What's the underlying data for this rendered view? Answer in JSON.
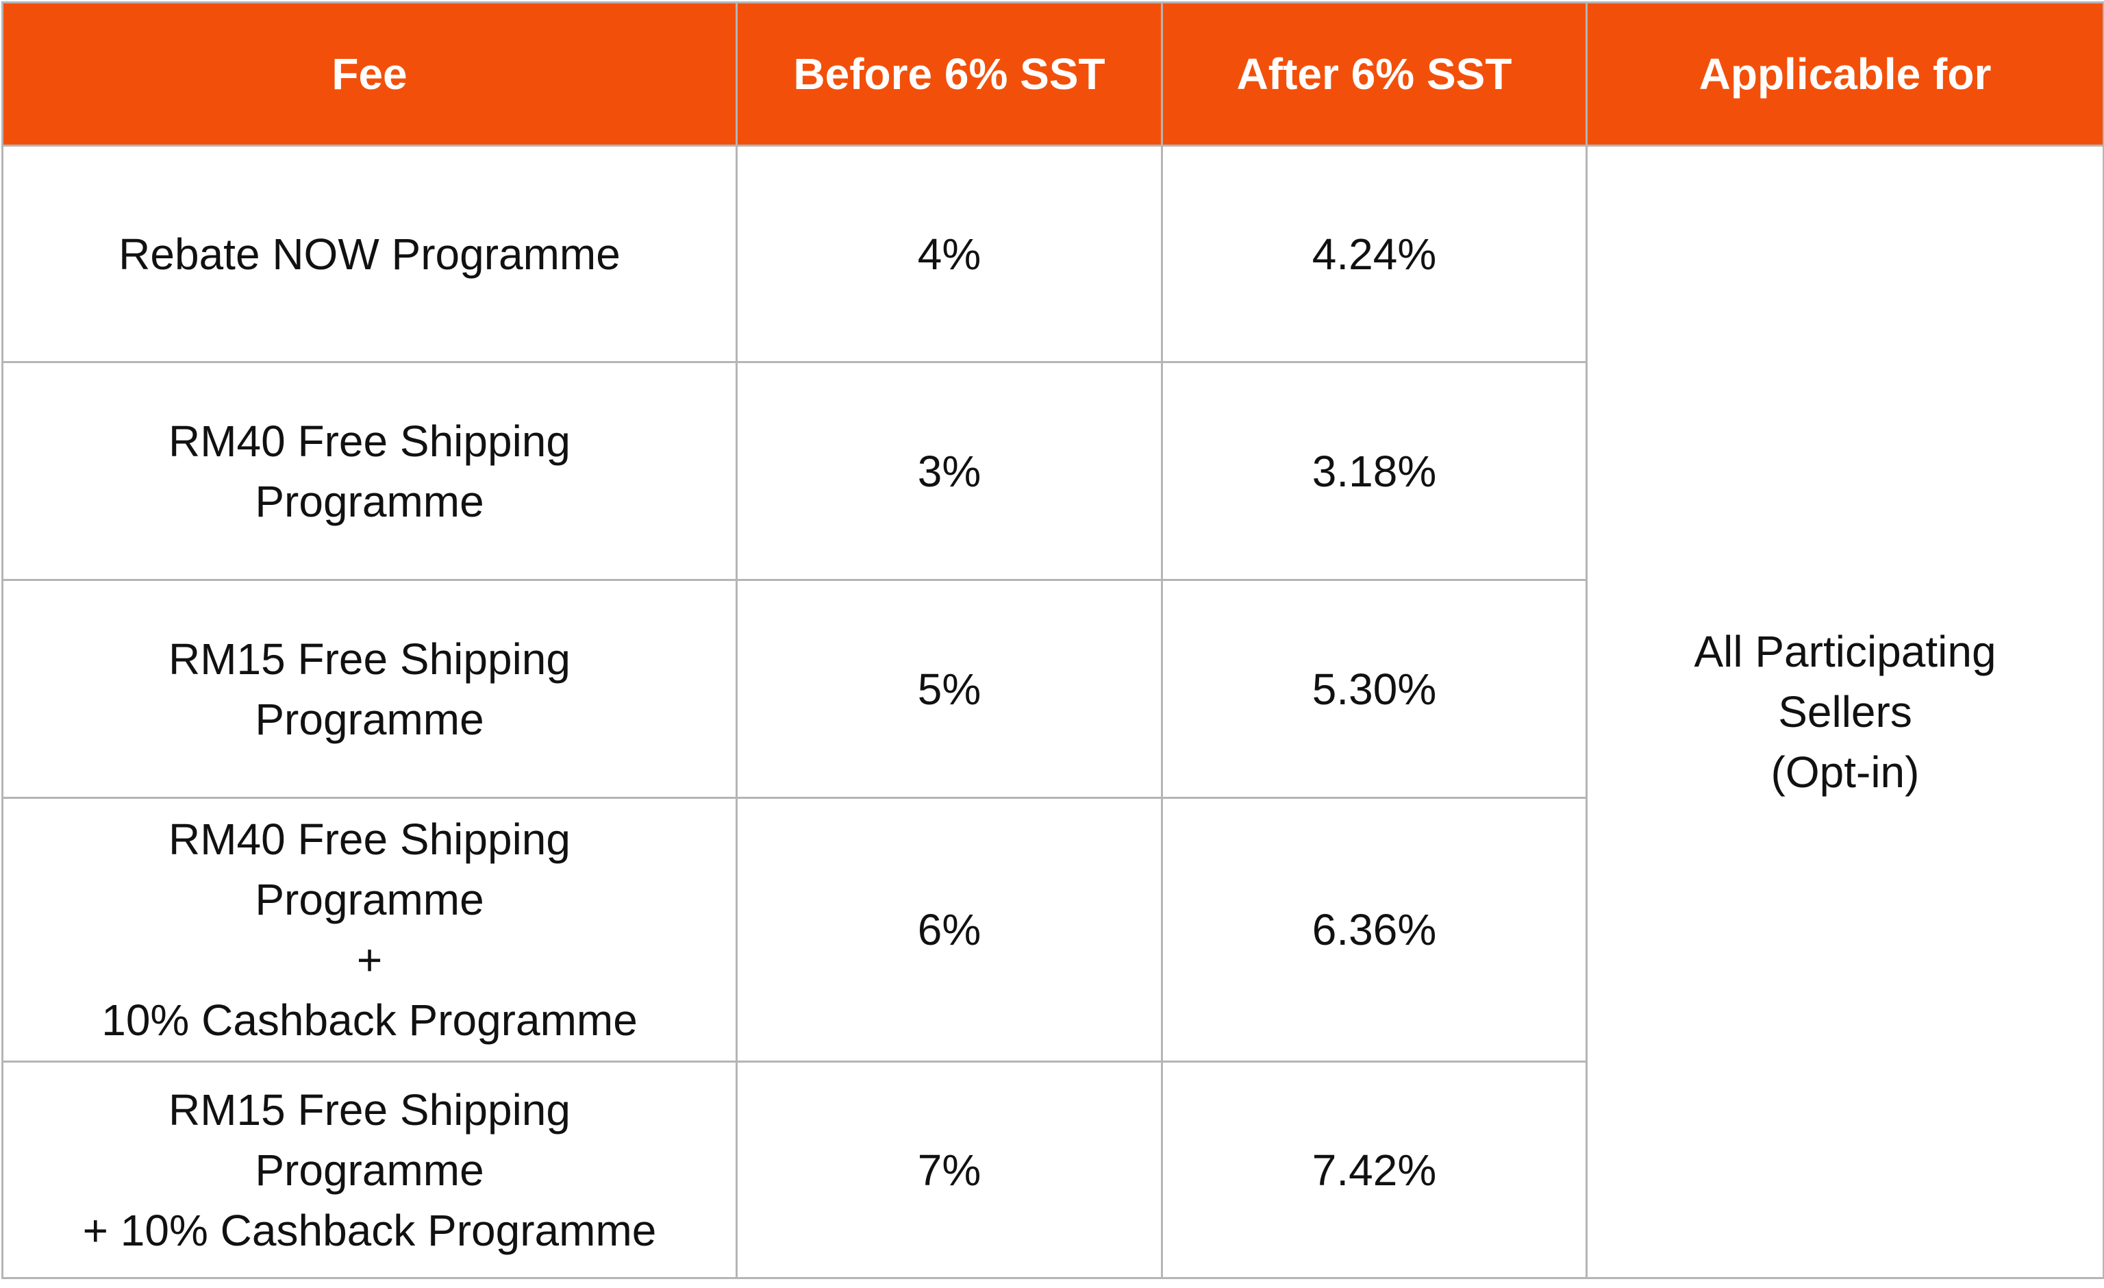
{
  "table": {
    "header": [
      "Fee",
      "Before 6% SST",
      "After 6% SST",
      "Applicable for"
    ],
    "rows": [
      {
        "fee": [
          "Rebate NOW Programme"
        ],
        "before": "4%",
        "after": "4.24%"
      },
      {
        "fee": [
          "RM40 Free Shipping",
          "Programme"
        ],
        "before": "3%",
        "after": "3.18%"
      },
      {
        "fee": [
          "RM15 Free Shipping",
          "Programme"
        ],
        "before": "5%",
        "after": "5.30%"
      },
      {
        "fee": [
          "RM40 Free Shipping",
          "Programme",
          "+",
          "10% Cashback Programme"
        ],
        "before": "6%",
        "after": "6.36%"
      },
      {
        "fee": [
          "RM15 Free Shipping",
          "Programme",
          "+ 10% Cashback Programme"
        ],
        "before": "7%",
        "after": "7.42%"
      }
    ],
    "applicable": [
      "All Participating",
      "Sellers",
      "(Opt-in)"
    ]
  }
}
